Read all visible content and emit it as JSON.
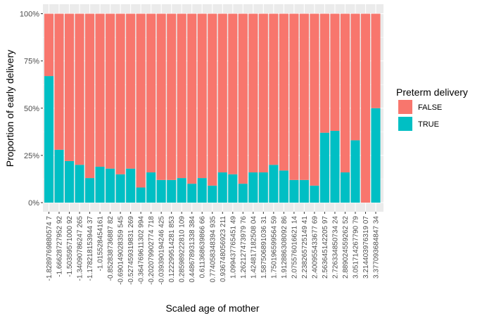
{
  "chart_data": {
    "type": "bar",
    "stacked": "proportion",
    "title": "",
    "xlabel": "Scaled age of mother",
    "ylabel": "Proportion of early delivery",
    "ylim": [
      0,
      1
    ],
    "y_ticks": [
      {
        "value": 0,
        "label": "0%"
      },
      {
        "value": 0.25,
        "label": "25%"
      },
      {
        "value": 0.5,
        "label": "50%"
      },
      {
        "value": 0.75,
        "label": "75%"
      },
      {
        "value": 1,
        "label": "100%"
      }
    ],
    "grid": true,
    "legend_position": "right",
    "legend_title": "Preterm delivery",
    "categories": [
      "-1.8289769880574 7",
      "-1.66628727952 92",
      "-1.50359571000 92",
      "-1.34090786247 265",
      "-1.178218153944 37",
      "-1.015528454161",
      "-0.852838736887 82",
      "-0.690149028359 545",
      "-0.527459319831 269",
      "-0.364769611302 994",
      "-0.202079902774 718",
      "-0.039390194246 425",
      "0.122299514281 853",
      "0.285989222810 109",
      "0.448678931338 384",
      "0.611368639866 66",
      "0.774058348394 935",
      "0.936748056923 211",
      "1.099437765451 49",
      "1.262127473979 76",
      "1.424817182508 04",
      "1.587506891036 31",
      "1.750196599564 59",
      "1.912886308092 86",
      "2.075576016621 14",
      "2.238265725149 41",
      "2.400955433677 69",
      "2.563645142205 97",
      "2.726334850734 24",
      "2.889024559262 52",
      "3.051714267790 79",
      "3.214403976319 07",
      "3.377093684847 34"
    ],
    "series": [
      {
        "name": "FALSE",
        "color": "#F8766D",
        "values": [
          0.33,
          0.72,
          0.78,
          0.8,
          0.87,
          0.81,
          0.82,
          0.85,
          0.82,
          0.92,
          0.84,
          0.88,
          0.88,
          0.87,
          0.9,
          0.87,
          0.91,
          0.84,
          0.85,
          0.9,
          0.84,
          0.84,
          0.8,
          0.83,
          0.88,
          0.88,
          0.91,
          0.63,
          0.62,
          0.84,
          0.67,
          1.0,
          0.5
        ]
      },
      {
        "name": "TRUE",
        "color": "#00BFC4",
        "values": [
          0.67,
          0.28,
          0.22,
          0.2,
          0.13,
          0.19,
          0.18,
          0.15,
          0.18,
          0.08,
          0.16,
          0.12,
          0.12,
          0.13,
          0.1,
          0.13,
          0.09,
          0.16,
          0.15,
          0.1,
          0.16,
          0.16,
          0.2,
          0.17,
          0.12,
          0.12,
          0.09,
          0.37,
          0.38,
          0.16,
          0.33,
          0.0,
          0.5
        ]
      }
    ]
  }
}
